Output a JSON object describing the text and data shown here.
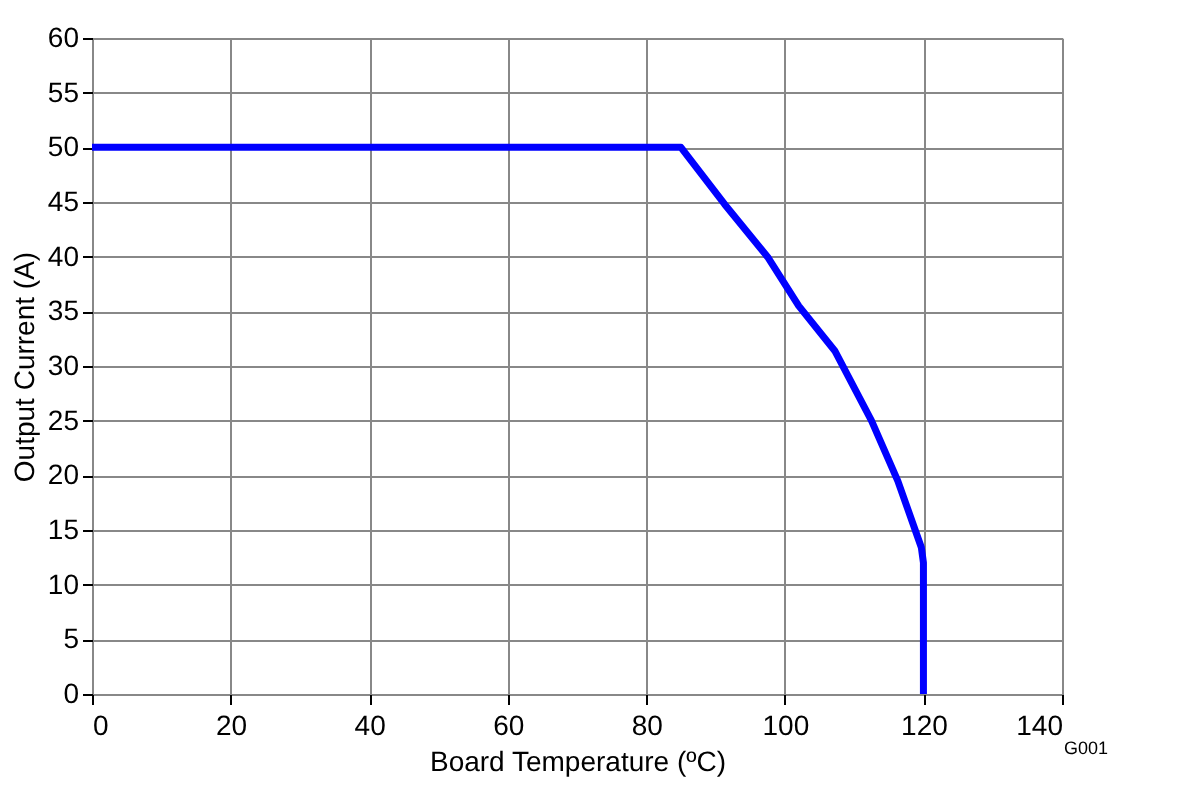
{
  "chart_data": {
    "type": "line",
    "xlabel": "Board Temperature (ºC)",
    "ylabel": "Output Current (A)",
    "annotations": [
      "G001"
    ],
    "series": [
      {
        "color": "#0000ff",
        "x": [
          0,
          85,
          91.3,
          97.6,
          102,
          107.2,
          112.5,
          116.3,
          119.7,
          120,
          120
        ],
        "values": [
          50,
          50,
          44.8,
          39.9,
          35.5,
          31.4,
          25,
          19.5,
          13.4,
          12,
          0
        ]
      }
    ],
    "xlim": [
      0,
      140
    ],
    "xticks": [
      0,
      20,
      40,
      60,
      80,
      100,
      120,
      140
    ],
    "ylim": [
      0,
      60
    ],
    "yticks": [
      0,
      5,
      10,
      15,
      20,
      25,
      30,
      35,
      40,
      45,
      50,
      55,
      60
    ],
    "grid": true,
    "marker": "none",
    "line_style": "solid"
  }
}
